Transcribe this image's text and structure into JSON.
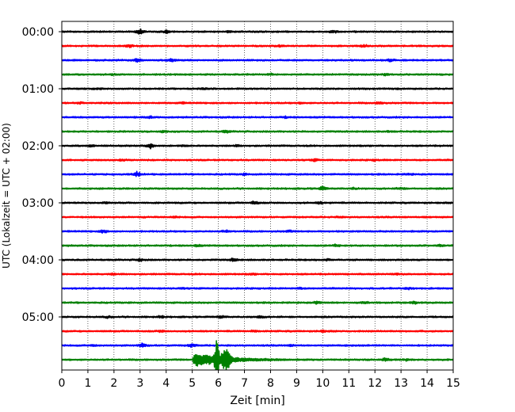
{
  "chart_data": {
    "type": "line",
    "title": "",
    "xlabel": "Zeit  [min]",
    "ylabel": "UTC (Lokalzeit = UTC + 02:00)",
    "xlim": [
      0,
      15
    ],
    "x_ticks": [
      "0",
      "1",
      "2",
      "3",
      "4",
      "5",
      "6",
      "7",
      "8",
      "9",
      "10",
      "11",
      "12",
      "13",
      "14",
      "15"
    ],
    "y_ticks": [
      "00:00",
      "01:00",
      "02:00",
      "03:00",
      "04:00",
      "05:00"
    ],
    "y_tick_trace_index": [
      0,
      4,
      8,
      12,
      16,
      20
    ],
    "trace_interval_minutes": 15,
    "grid_x": true,
    "colors": [
      "#000000",
      "#ff0000",
      "#0000ff",
      "#008000"
    ],
    "traces": [
      {
        "start": "00:00",
        "color": "#000000",
        "amplitude": 1.0,
        "bursts": [
          [
            3.0,
            2.2
          ],
          [
            4.0,
            1.6
          ],
          [
            6.4,
            1.4
          ],
          [
            10.4,
            1.6
          ]
        ]
      },
      {
        "start": "00:15",
        "color": "#ff0000",
        "amplitude": 1.0,
        "bursts": [
          [
            2.6,
            1.6
          ],
          [
            8.4,
            1.4
          ],
          [
            11.6,
            1.5
          ]
        ]
      },
      {
        "start": "00:30",
        "color": "#0000ff",
        "amplitude": 1.0,
        "bursts": [
          [
            2.9,
            1.8
          ],
          [
            4.2,
            1.7
          ],
          [
            12.6,
            1.5
          ]
        ]
      },
      {
        "start": "00:45",
        "color": "#008000",
        "amplitude": 1.0,
        "bursts": [
          [
            2.0,
            1.3
          ],
          [
            8.0,
            1.3
          ],
          [
            12.4,
            1.4
          ]
        ]
      },
      {
        "start": "01:00",
        "color": "#000000",
        "amplitude": 1.0,
        "bursts": [
          [
            1.4,
            1.3
          ],
          [
            5.4,
            1.3
          ]
        ]
      },
      {
        "start": "01:15",
        "color": "#ff0000",
        "amplitude": 1.0,
        "bursts": [
          [
            0.7,
            1.4
          ],
          [
            4.6,
            1.3
          ],
          [
            9.2,
            1.3
          ],
          [
            12.2,
            1.6
          ]
        ]
      },
      {
        "start": "01:30",
        "color": "#0000ff",
        "amplitude": 1.0,
        "bursts": [
          [
            3.4,
            1.4
          ],
          [
            8.6,
            1.3
          ]
        ]
      },
      {
        "start": "01:45",
        "color": "#008000",
        "amplitude": 1.0,
        "bursts": [
          [
            3.9,
            1.4
          ],
          [
            6.3,
            1.6
          ],
          [
            12.6,
            1.3
          ]
        ]
      },
      {
        "start": "02:00",
        "color": "#000000",
        "amplitude": 1.0,
        "bursts": [
          [
            3.4,
            2.4
          ],
          [
            1.1,
            1.4
          ],
          [
            4.7,
            1.4
          ],
          [
            6.7,
            1.3
          ]
        ]
      },
      {
        "start": "02:15",
        "color": "#ff0000",
        "amplitude": 1.0,
        "bursts": [
          [
            2.3,
            1.3
          ],
          [
            9.7,
            1.5
          ],
          [
            12.0,
            1.3
          ]
        ]
      },
      {
        "start": "02:30",
        "color": "#0000ff",
        "amplitude": 1.0,
        "bursts": [
          [
            2.9,
            2.2
          ],
          [
            7.0,
            1.3
          ],
          [
            13.3,
            1.3
          ]
        ]
      },
      {
        "start": "02:45",
        "color": "#008000",
        "amplitude": 1.0,
        "bursts": [
          [
            10.0,
            1.9
          ],
          [
            11.2,
            1.4
          ],
          [
            13.0,
            1.5
          ]
        ]
      },
      {
        "start": "03:00",
        "color": "#000000",
        "amplitude": 1.0,
        "bursts": [
          [
            1.7,
            1.4
          ],
          [
            7.4,
            1.8
          ],
          [
            9.9,
            1.4
          ]
        ]
      },
      {
        "start": "03:15",
        "color": "#ff0000",
        "amplitude": 1.0,
        "bursts": [
          [
            4.3,
            1.3
          ],
          [
            10.6,
            1.3
          ],
          [
            14.0,
            1.3
          ]
        ]
      },
      {
        "start": "03:30",
        "color": "#0000ff",
        "amplitude": 1.0,
        "bursts": [
          [
            1.6,
            1.8
          ],
          [
            6.3,
            1.5
          ],
          [
            8.7,
            1.4
          ]
        ]
      },
      {
        "start": "03:45",
        "color": "#008000",
        "amplitude": 1.0,
        "bursts": [
          [
            5.2,
            1.4
          ],
          [
            10.5,
            1.5
          ],
          [
            14.5,
            1.4
          ]
        ]
      },
      {
        "start": "04:00",
        "color": "#000000",
        "amplitude": 1.0,
        "bursts": [
          [
            3.0,
            1.6
          ],
          [
            6.6,
            1.8
          ],
          [
            10.2,
            1.4
          ]
        ]
      },
      {
        "start": "04:15",
        "color": "#ff0000",
        "amplitude": 1.0,
        "bursts": [
          [
            2.0,
            1.3
          ],
          [
            7.3,
            1.3
          ],
          [
            12.8,
            1.3
          ]
        ]
      },
      {
        "start": "04:30",
        "color": "#0000ff",
        "amplitude": 1.0,
        "bursts": [
          [
            4.6,
            1.3
          ],
          [
            9.1,
            1.4
          ],
          [
            13.3,
            1.3
          ]
        ]
      },
      {
        "start": "04:45",
        "color": "#008000",
        "amplitude": 1.0,
        "bursts": [
          [
            9.8,
            1.7
          ],
          [
            11.6,
            1.4
          ],
          [
            13.5,
            1.7
          ]
        ]
      },
      {
        "start": "05:00",
        "color": "#000000",
        "amplitude": 1.0,
        "bursts": [
          [
            1.8,
            1.4
          ],
          [
            3.8,
            1.5
          ],
          [
            6.1,
            1.6
          ],
          [
            7.6,
            1.6
          ]
        ]
      },
      {
        "start": "05:15",
        "color": "#ff0000",
        "amplitude": 1.0,
        "bursts": [
          [
            3.8,
            1.4
          ],
          [
            7.4,
            1.5
          ],
          [
            10.0,
            1.4
          ]
        ]
      },
      {
        "start": "05:30",
        "color": "#0000ff",
        "amplitude": 1.0,
        "bursts": [
          [
            1.2,
            1.4
          ],
          [
            3.1,
            2.0
          ],
          [
            5.0,
            1.9
          ],
          [
            8.8,
            1.3
          ]
        ]
      },
      {
        "start": "05:45",
        "color": "#008000",
        "amplitude": 1.0,
        "bursts": [
          [
            12.4,
            1.6
          ],
          [
            13.2,
            1.4
          ]
        ],
        "event": {
          "onset": 5.0,
          "peak": 5.95,
          "end": 8.6
        }
      }
    ]
  }
}
